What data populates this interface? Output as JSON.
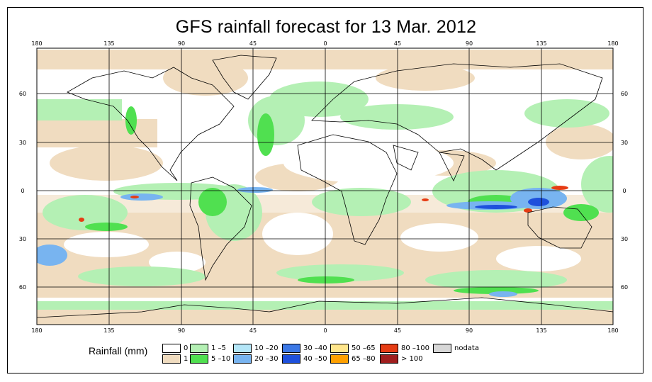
{
  "title": "GFS rainfall forecast for 13 Mar. 2012",
  "longitude_labels": [
    "180",
    "135",
    "90",
    "45",
    "0",
    "45",
    "90",
    "135",
    "180"
  ],
  "latitude_labels": [
    "60",
    "30",
    "0",
    "30",
    "60"
  ],
  "legend": {
    "title": "Rainfall (mm)",
    "items": [
      {
        "label": "0",
        "color": "#ffffff"
      },
      {
        "label": "1",
        "color": "#f0dcc0"
      },
      {
        "label": "1 –5",
        "color": "#b4f0b4"
      },
      {
        "label": "5 –10",
        "color": "#50e050"
      },
      {
        "label": "10 –20",
        "color": "#b4e6f8"
      },
      {
        "label": "20 –30",
        "color": "#78b4f0"
      },
      {
        "label": "30 –40",
        "color": "#3c78e6"
      },
      {
        "label": "40 –50",
        "color": "#1e50dc"
      },
      {
        "label": "50 –65",
        "color": "#ffe68c"
      },
      {
        "label": "65 –80",
        "color": "#ffa000"
      },
      {
        "label": "80 –100",
        "color": "#e63c14"
      },
      {
        "label": "> 100",
        "color": "#a01e1e"
      },
      {
        "label": "nodata",
        "color": "#d7d7d7"
      }
    ]
  }
}
